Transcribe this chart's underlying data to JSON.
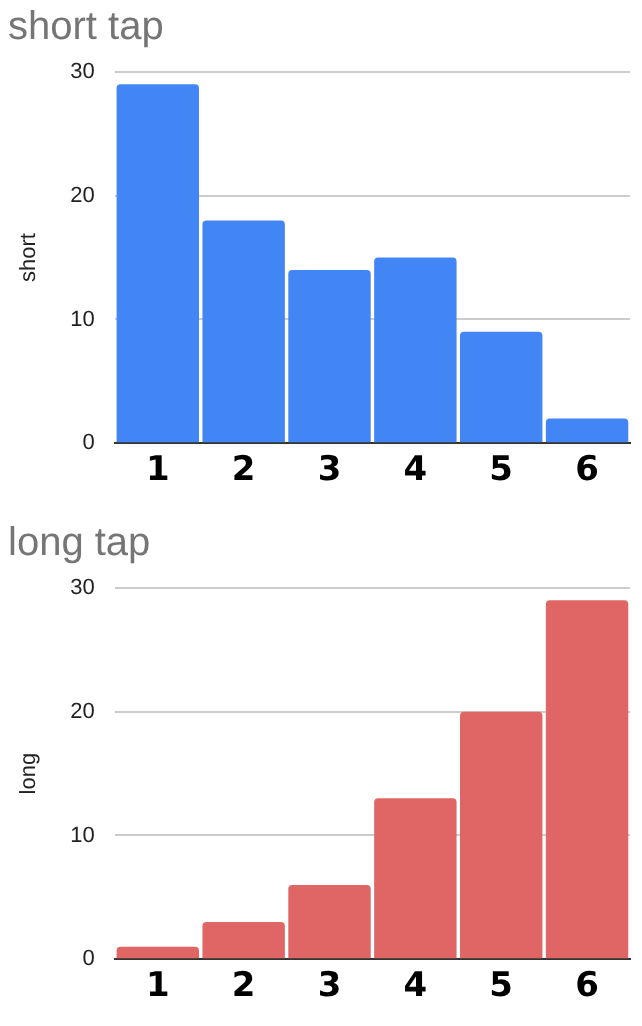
{
  "chart_data": [
    {
      "type": "bar",
      "title": "short tap",
      "ylabel": "short",
      "categories": [
        "1",
        "2",
        "3",
        "4",
        "5",
        "6"
      ],
      "values": [
        29,
        18,
        14,
        15,
        9,
        2
      ],
      "color": "#4285f4",
      "ylim": [
        0,
        30
      ],
      "yticks": [
        0,
        10,
        20,
        30
      ],
      "grid": "y",
      "legend": false
    },
    {
      "type": "bar",
      "title": "long tap",
      "ylabel": "long",
      "categories": [
        "1",
        "2",
        "3",
        "4",
        "5",
        "6"
      ],
      "values": [
        1,
        3,
        6,
        13,
        20,
        29
      ],
      "color": "#e06666",
      "ylim": [
        0,
        30
      ],
      "yticks": [
        0,
        10,
        20,
        30
      ],
      "grid": "y",
      "legend": false
    }
  ]
}
